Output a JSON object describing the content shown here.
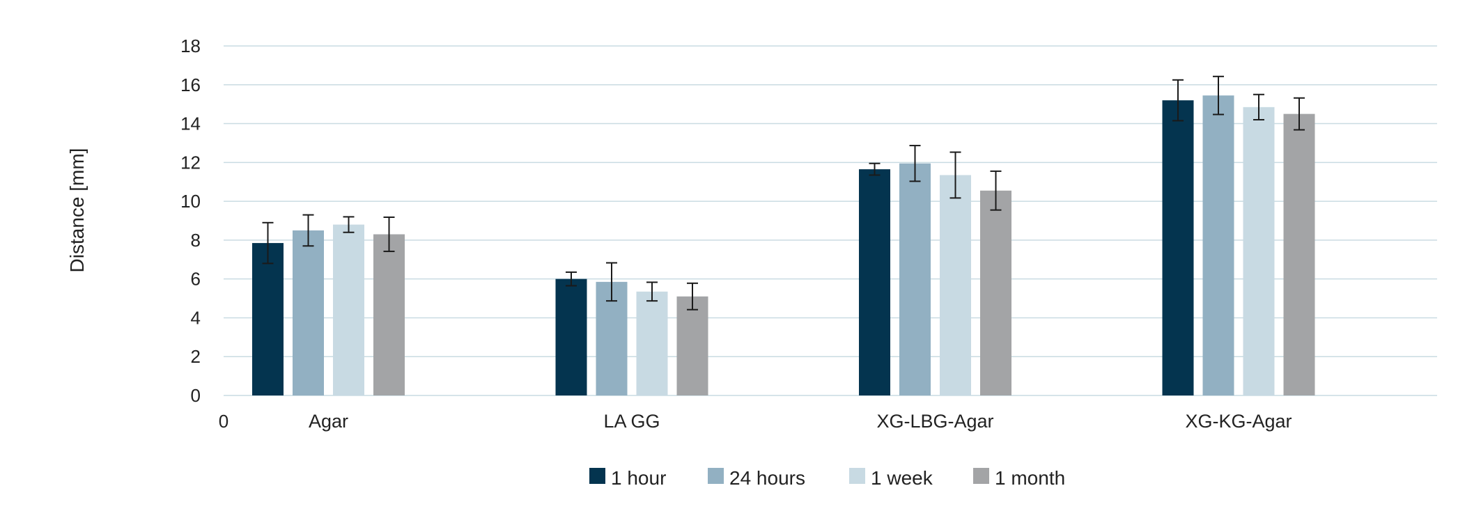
{
  "chart_data": {
    "type": "bar",
    "ylabel": "Distance [mm]",
    "xlabel": "",
    "ylim": [
      0,
      18
    ],
    "yticks": [
      0,
      2,
      4,
      6,
      8,
      10,
      12,
      14,
      16,
      18
    ],
    "x_origin_label": "0",
    "categories": [
      "Agar",
      "LA GG",
      "XG-LBG-Agar",
      "XG-KG-Agar"
    ],
    "series": [
      {
        "name": "1 hour",
        "color": "#04344f",
        "values": [
          7.85,
          6.0,
          11.65,
          15.2
        ],
        "errors": [
          1.05,
          0.35,
          0.3,
          1.05
        ]
      },
      {
        "name": "24 hours",
        "color": "#92b0c2",
        "values": [
          8.5,
          5.85,
          11.95,
          15.45
        ],
        "errors": [
          0.8,
          0.98,
          0.92,
          0.98
        ]
      },
      {
        "name": "1 week",
        "color": "#c8dae3",
        "values": [
          8.8,
          5.35,
          11.35,
          14.85
        ],
        "errors": [
          0.4,
          0.48,
          1.18,
          0.65
        ]
      },
      {
        "name": "1 month",
        "color": "#a3a4a6",
        "values": [
          8.3,
          5.1,
          10.55,
          14.5
        ],
        "errors": [
          0.88,
          0.68,
          1.0,
          0.82
        ]
      }
    ],
    "grid": true,
    "legend_position": "bottom-center"
  }
}
